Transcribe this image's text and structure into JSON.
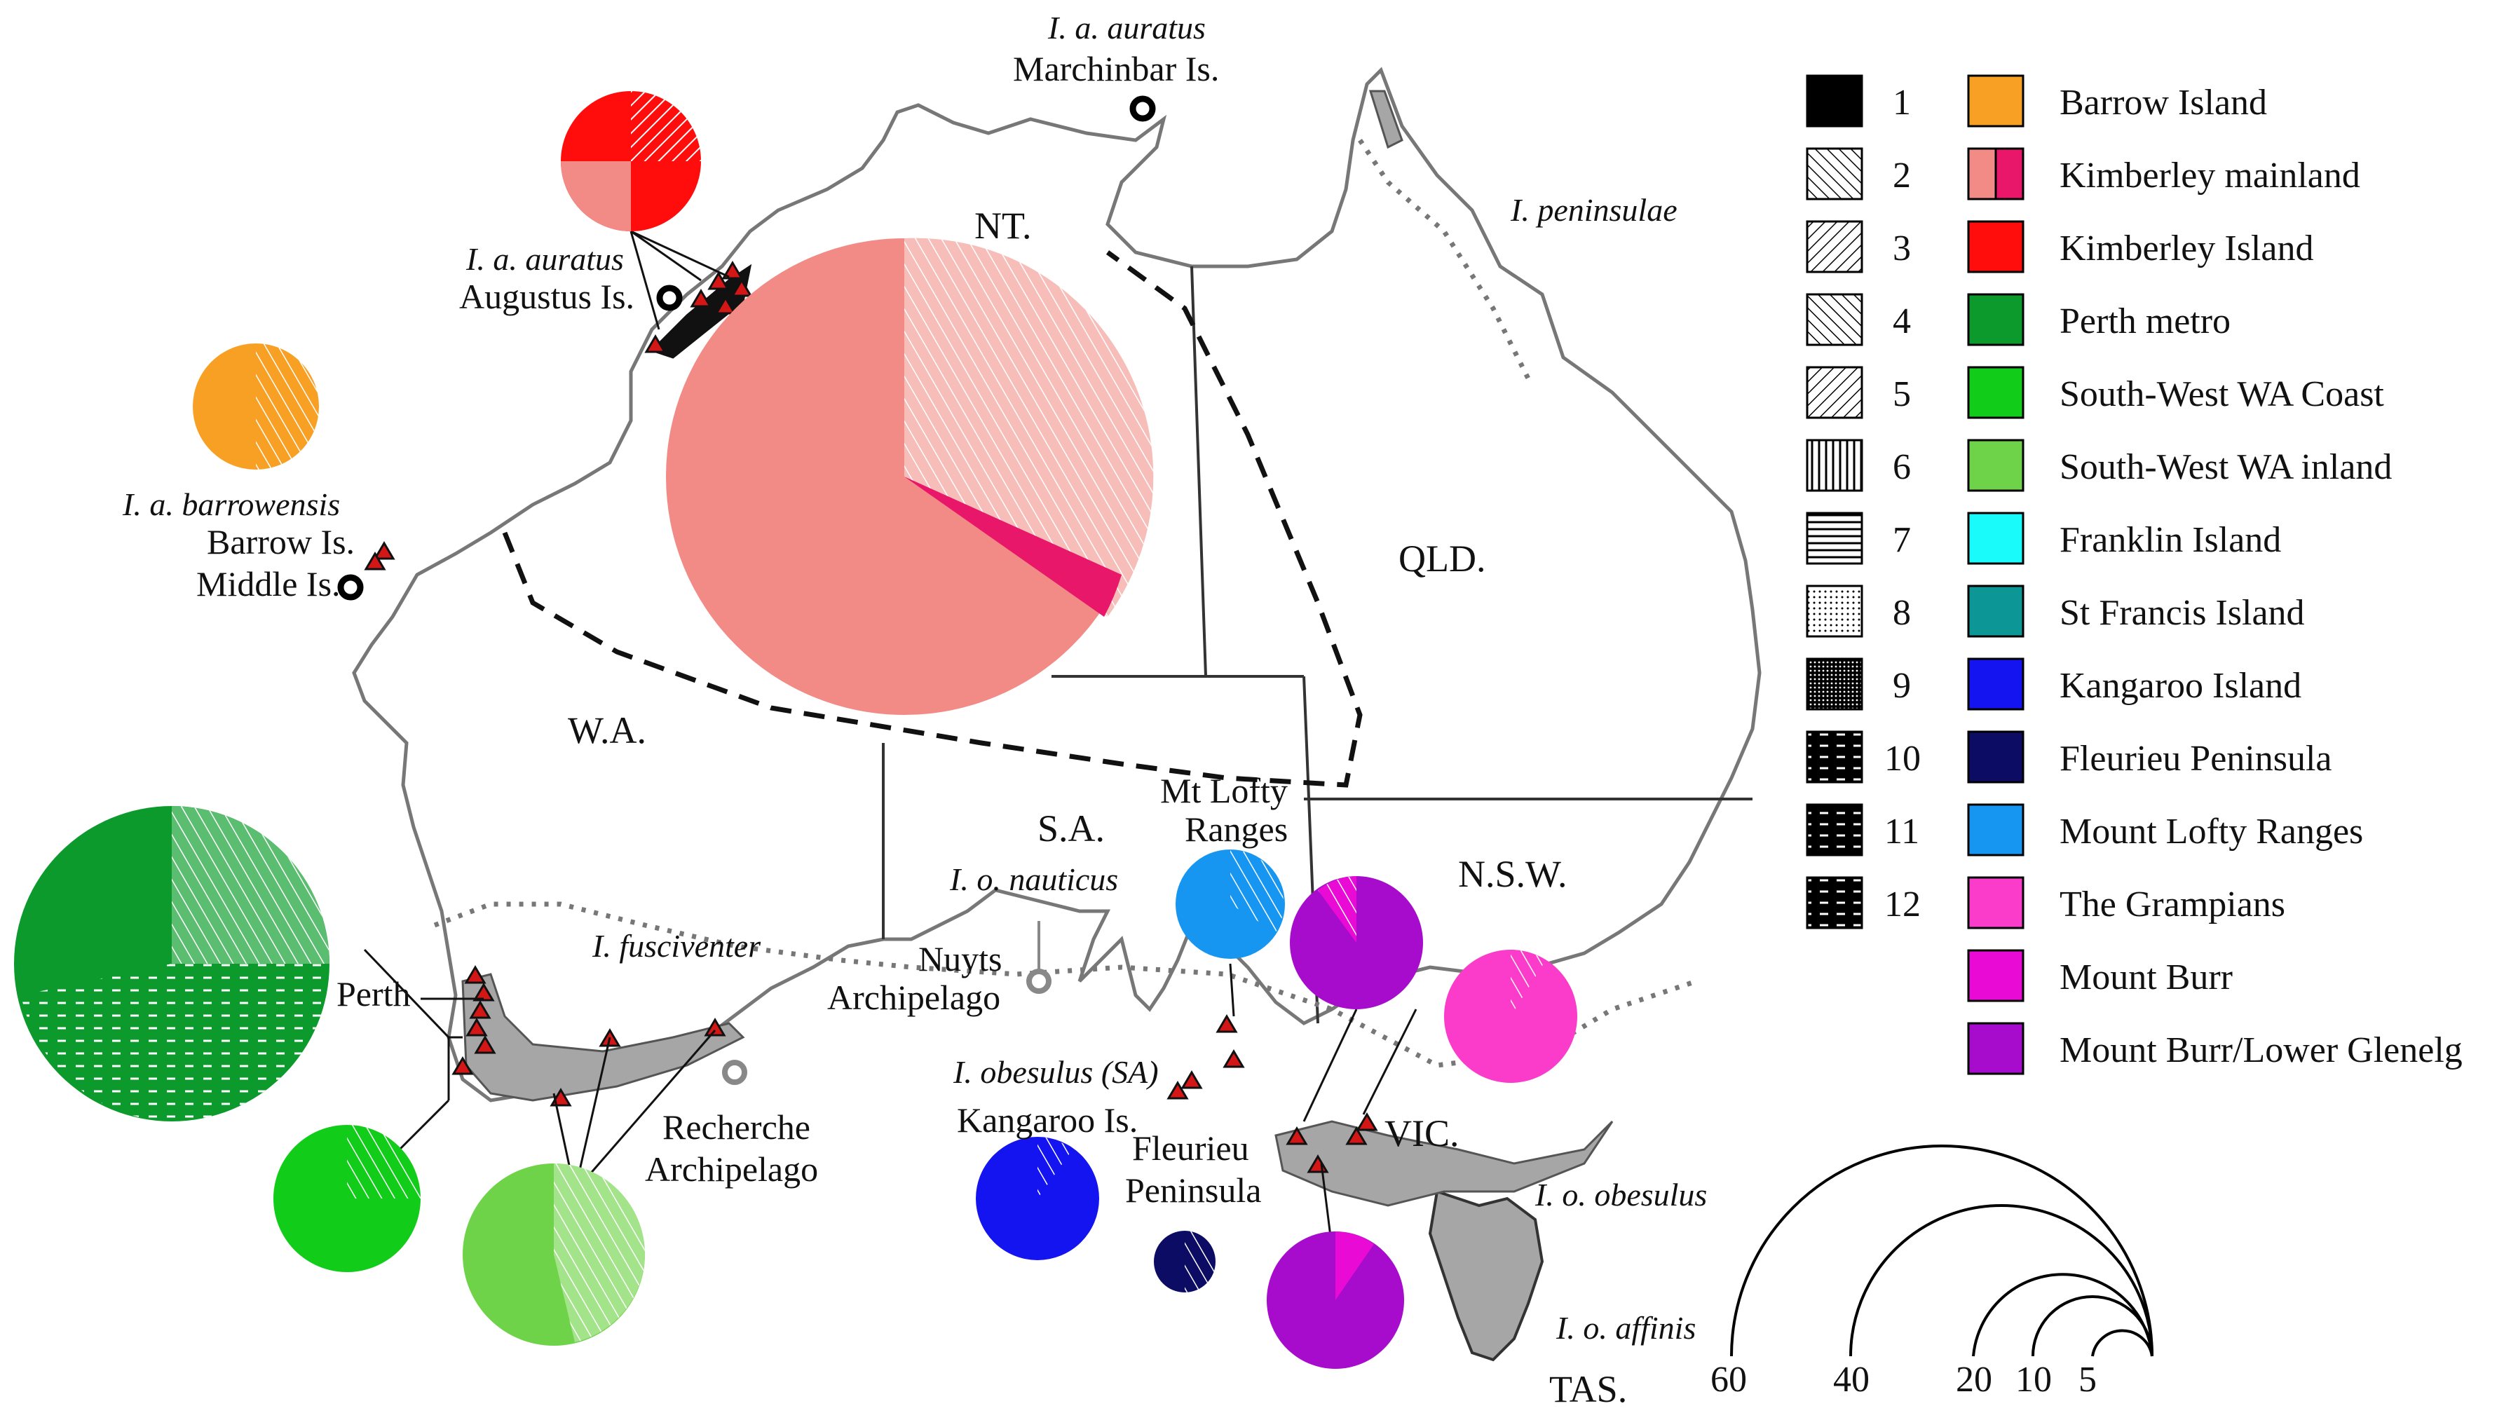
{
  "states": {
    "nt": "NT.",
    "qld": "QLD.",
    "wa": "W.A.",
    "sa": "S.A.",
    "nsw": "N.S.W.",
    "vic": "VIC.",
    "tas": "TAS."
  },
  "species": {
    "auratus_marchinbar": "I. a. auratus",
    "auratus_augustus": "I. a. auratus",
    "barrowensis": "I. a. barrowensis",
    "peninsulae": "I. peninsulae",
    "fusciventer": "I. fusciventer",
    "nauticus": "I. o. nauticus",
    "obesulus_sa": "I. obesulus (SA)",
    "obesulus": "I. o. obesulus",
    "affinis": "I. o. affinis"
  },
  "places": {
    "marchinbar": "Marchinbar Is.",
    "augustus": "Augustus Is.",
    "barrow": "Barrow Is.",
    "middle": "Middle Is.",
    "perth": "Perth",
    "recherche_1": "Recherche",
    "recherche_2": "Archipelago",
    "nuyts_1": "Nuyts",
    "nuyts_2": "Archipelago",
    "kangaroo": "Kangaroo Is.",
    "fleurieu_1": "Fleurieu",
    "fleurieu_2": "Peninsula",
    "mtlofty_1": "Mt Lofty",
    "mtlofty_2": "Ranges"
  },
  "legend_patterns": [
    "1",
    "2",
    "3",
    "4",
    "5",
    "6",
    "7",
    "8",
    "9",
    "10",
    "11",
    "12"
  ],
  "legend_regions": [
    {
      "label": "Barrow Island",
      "color": "#f7a023"
    },
    {
      "label": "Kimberley mainland",
      "color": "#f28a86",
      "color2": "#e8176a"
    },
    {
      "label": "Kimberley Island",
      "color": "#ff0d0d"
    },
    {
      "label": "Perth metro",
      "color": "#0c9a2c"
    },
    {
      "label": "South-West WA Coast",
      "color": "#12cc1a"
    },
    {
      "label": "South-West WA inland",
      "color": "#6fd34a"
    },
    {
      "label": "Franklin Island",
      "color": "#19fbfb"
    },
    {
      "label": "St Francis Island",
      "color": "#0c9696"
    },
    {
      "label": "Kangaroo Island",
      "color": "#1414f0"
    },
    {
      "label": "Fleurieu Peninsula",
      "color": "#0c0c64"
    },
    {
      "label": "Mount Lofty Ranges",
      "color": "#1696f0"
    },
    {
      "label": "The Grampians",
      "color": "#fb3ccb"
    },
    {
      "label": "Mount Burr",
      "color": "#ea0ad6"
    },
    {
      "label": "Mount Burr/Lower Glenelg",
      "color": "#a70ccd"
    }
  ],
  "scale_labels": [
    "60",
    "40",
    "20",
    "10",
    "5"
  ]
}
